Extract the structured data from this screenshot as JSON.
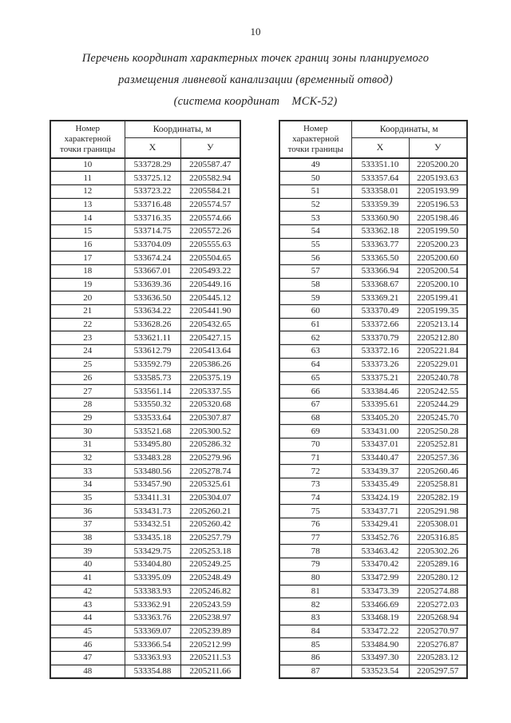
{
  "page_number": "10",
  "title": {
    "line1": "Перечень координат характерных точек границ зоны планируемого",
    "line2": "размещения ливневой канализации (временный отвод)",
    "line3": "(система координат    МСК-52)"
  },
  "table_header": {
    "point_label": "Номер характерной точки границы",
    "coords_label": "Координаты, м",
    "x_label": "X",
    "y_label": "У"
  },
  "tables": {
    "left": {
      "rows": [
        [
          "10",
          "533728.29",
          "2205587.47"
        ],
        [
          "11",
          "533725.12",
          "2205582.94"
        ],
        [
          "12",
          "533723.22",
          "2205584.21"
        ],
        [
          "13",
          "533716.48",
          "2205574.57"
        ],
        [
          "14",
          "533716.35",
          "2205574.66"
        ],
        [
          "15",
          "533714.75",
          "2205572.26"
        ],
        [
          "16",
          "533704.09",
          "2205555.63"
        ],
        [
          "17",
          "533674.24",
          "2205504.65"
        ],
        [
          "18",
          "533667.01",
          "2205493.22"
        ],
        [
          "19",
          "533639.36",
          "2205449.16"
        ],
        [
          "20",
          "533636.50",
          "2205445.12"
        ],
        [
          "21",
          "533634.22",
          "2205441.90"
        ],
        [
          "22",
          "533628.26",
          "2205432.65"
        ],
        [
          "23",
          "533621.11",
          "2205427.15"
        ],
        [
          "24",
          "533612.79",
          "2205413.64"
        ],
        [
          "25",
          "533592.79",
          "2205386.26"
        ],
        [
          "26",
          "533585.73",
          "2205375.19"
        ],
        [
          "27",
          "533561.14",
          "2205337.55"
        ],
        [
          "28",
          "533550.32",
          "2205320.68"
        ],
        [
          "29",
          "533533.64",
          "2205307.87"
        ],
        [
          "30",
          "533521.68",
          "2205300.52"
        ],
        [
          "31",
          "533495.80",
          "2205286.32"
        ],
        [
          "32",
          "533483.28",
          "2205279.96"
        ],
        [
          "33",
          "533480.56",
          "2205278.74"
        ],
        [
          "34",
          "533457.90",
          "2205325.61"
        ],
        [
          "35",
          "533411.31",
          "2205304.07"
        ],
        [
          "36",
          "533431.73",
          "2205260.21"
        ],
        [
          "37",
          "533432.51",
          "2205260.42"
        ],
        [
          "38",
          "533435.18",
          "2205257.79"
        ],
        [
          "39",
          "533429.75",
          "2205253.18"
        ],
        [
          "40",
          "533404.80",
          "2205249.25"
        ],
        [
          "41",
          "533395.09",
          "2205248.49"
        ],
        [
          "42",
          "533383.93",
          "2205246.82"
        ],
        [
          "43",
          "533362.91",
          "2205243.59"
        ],
        [
          "44",
          "533363.76",
          "2205238.97"
        ],
        [
          "45",
          "533369.07",
          "2205239.89"
        ],
        [
          "46",
          "533366.54",
          "2205212.99"
        ],
        [
          "47",
          "533363.93",
          "2205211.53"
        ],
        [
          "48",
          "533354.88",
          "2205211.66"
        ]
      ]
    },
    "right": {
      "rows": [
        [
          "49",
          "533351.10",
          "2205200.20"
        ],
        [
          "50",
          "533357.64",
          "2205193.63"
        ],
        [
          "51",
          "533358.01",
          "2205193.99"
        ],
        [
          "52",
          "533359.39",
          "2205196.53"
        ],
        [
          "53",
          "533360.90",
          "2205198.46"
        ],
        [
          "54",
          "533362.18",
          "2205199.50"
        ],
        [
          "55",
          "533363.77",
          "2205200.23"
        ],
        [
          "56",
          "533365.50",
          "2205200.60"
        ],
        [
          "57",
          "533366.94",
          "2205200.54"
        ],
        [
          "58",
          "533368.67",
          "2205200.10"
        ],
        [
          "59",
          "533369.21",
          "2205199.41"
        ],
        [
          "60",
          "533370.49",
          "2205199.35"
        ],
        [
          "61",
          "533372.66",
          "2205213.14"
        ],
        [
          "62",
          "533370.79",
          "2205212.80"
        ],
        [
          "63",
          "533372.16",
          "2205221.84"
        ],
        [
          "64",
          "533373.26",
          "2205229.01"
        ],
        [
          "65",
          "533375.21",
          "2205240.78"
        ],
        [
          "66",
          "533384.46",
          "2205242.55"
        ],
        [
          "67",
          "533395.61",
          "2205244.29"
        ],
        [
          "68",
          "533405.20",
          "2205245.70"
        ],
        [
          "69",
          "533431.00",
          "2205250.28"
        ],
        [
          "70",
          "533437.01",
          "2205252.81"
        ],
        [
          "71",
          "533440.47",
          "2205257.36"
        ],
        [
          "72",
          "533439.37",
          "2205260.46"
        ],
        [
          "73",
          "533435.49",
          "2205258.81"
        ],
        [
          "74",
          "533424.19",
          "2205282.19"
        ],
        [
          "75",
          "533437.71",
          "2205291.98"
        ],
        [
          "76",
          "533429.41",
          "2205308.01"
        ],
        [
          "77",
          "533452.76",
          "2205316.85"
        ],
        [
          "78",
          "533463.42",
          "2205302.26"
        ],
        [
          "79",
          "533470.42",
          "2205289.16"
        ],
        [
          "80",
          "533472.99",
          "2205280.12"
        ],
        [
          "81",
          "533473.39",
          "2205274.88"
        ],
        [
          "82",
          "533466.69",
          "2205272.03"
        ],
        [
          "83",
          "533468.19",
          "2205268.94"
        ],
        [
          "84",
          "533472.22",
          "2205270.97"
        ],
        [
          "85",
          "533484.90",
          "2205276.87"
        ],
        [
          "86",
          "533497.30",
          "2205283.12"
        ],
        [
          "87",
          "533523.54",
          "2205297.57"
        ]
      ]
    }
  }
}
